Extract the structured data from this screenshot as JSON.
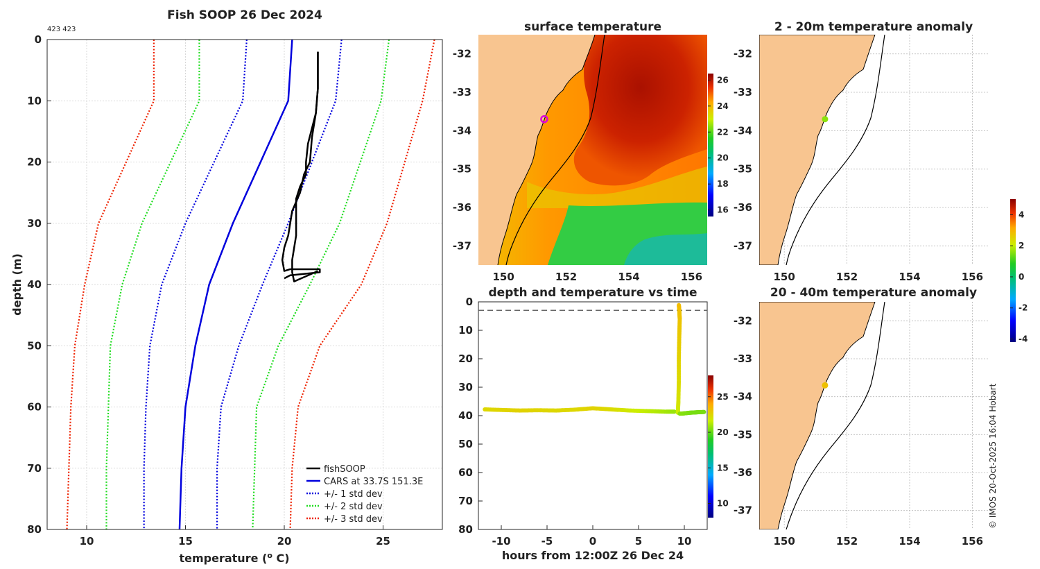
{
  "chart_data": [
    {
      "type": "line",
      "title": "Fish SOOP 26 Dec 2024",
      "subtitle": "423 423",
      "xlabel": "temperature (",
      "xlabel_sup": "o",
      "xlabel_tail": " C)",
      "ylabel": "depth (m)",
      "xlim": [
        8,
        28
      ],
      "ylim": [
        80,
        0
      ],
      "xticks": [
        10,
        15,
        20,
        25
      ],
      "yticks": [
        0,
        10,
        20,
        30,
        40,
        50,
        60,
        70,
        80
      ],
      "depths": [
        0,
        10,
        30,
        40,
        50,
        60,
        70,
        80
      ],
      "series": [
        {
          "name": "CARS at 33.7S 151.3E",
          "style": "solid",
          "color": "#0000dd",
          "x": [
            20.4,
            20.2,
            17.4,
            16.2,
            15.5,
            15.0,
            14.8,
            14.7
          ]
        },
        {
          "name": "+/- 1 std dev",
          "style": "dotted",
          "color": "#0000dd",
          "x": [
            18.1,
            17.9,
            15.0,
            13.8,
            13.2,
            13.0,
            12.9,
            12.9
          ]
        },
        {
          "name": "+/- 1 std dev",
          "style": "dotted",
          "color": "#0000dd",
          "legend": false,
          "x": [
            22.9,
            22.6,
            20.2,
            18.9,
            17.7,
            16.8,
            16.6,
            16.6
          ]
        },
        {
          "name": "+/- 2 std dev",
          "style": "dotted",
          "color": "#22dd22",
          "x": [
            15.7,
            15.7,
            12.8,
            11.8,
            11.2,
            11.1,
            11.0,
            11.0
          ]
        },
        {
          "name": "+/- 2 std dev",
          "style": "dotted",
          "color": "#22dd22",
          "legend": false,
          "x": [
            25.3,
            24.9,
            22.8,
            21.3,
            19.7,
            18.6,
            18.5,
            18.4
          ]
        },
        {
          "name": "+/- 3 std dev",
          "style": "dotted",
          "color": "#ee2200",
          "x": [
            13.4,
            13.4,
            10.6,
            9.9,
            9.4,
            9.2,
            9.1,
            9.0
          ]
        },
        {
          "name": "+/- 3 std dev",
          "style": "dotted",
          "color": "#ee2200",
          "legend": false,
          "x": [
            27.6,
            27.0,
            25.2,
            23.9,
            21.8,
            20.7,
            20.4,
            20.3
          ]
        }
      ],
      "fishsoop": {
        "name": "fishSOOP",
        "down": {
          "x": [
            21.7,
            21.7,
            21.6,
            21.2,
            21.1,
            21.1,
            20.8,
            20.6,
            20.6,
            20.6,
            20.6,
            20.5,
            20.4,
            20.4,
            20.5,
            21.7
          ],
          "y": [
            2,
            8,
            12,
            17,
            20,
            22,
            24,
            26,
            28,
            30,
            32,
            34,
            36,
            38,
            39.5,
            37.8
          ]
        },
        "up": {
          "x": [
            20.0,
            20.3,
            21.8,
            21.8,
            20.3,
            20.0,
            19.9,
            20.0,
            20.2,
            20.3,
            20.4,
            20.8,
            21.0,
            21.3,
            21.4,
            21.6,
            21.7,
            21.7
          ],
          "y": [
            39,
            38.5,
            38,
            37.5,
            37.5,
            37.8,
            36,
            34,
            32,
            30,
            28,
            25,
            22,
            20,
            16,
            12,
            8,
            2
          ]
        }
      },
      "legend": [
        "fishSOOP",
        "CARS at 33.7S 151.3E",
        "+/- 1 std dev",
        "+/- 2 std dev",
        "+/- 3 std dev"
      ],
      "legend_position": "bottom-right",
      "grid": true
    },
    {
      "type": "heatmap",
      "title": "surface temperature",
      "xlim": [
        149.2,
        156.5
      ],
      "ylim": [
        -37.5,
        -31.5
      ],
      "xticks": [
        150,
        152,
        154,
        156
      ],
      "yticks": [
        -32,
        -33,
        -34,
        -35,
        -36,
        -37
      ],
      "colorbar": {
        "range": [
          15.5,
          26.5
        ],
        "ticks": [
          16,
          18,
          20,
          22,
          24,
          26
        ]
      },
      "marker": {
        "lon": 151.3,
        "lat": -33.7,
        "shape": "ring",
        "color": "#dd00dd"
      }
    },
    {
      "type": "scatter",
      "title": "depth and temperature vs time",
      "xlabel": "hours from 12:00Z 26 Dec 24",
      "xlim": [
        -12.5,
        12.5
      ],
      "ylim": [
        80,
        0
      ],
      "xticks": [
        -10,
        -5,
        0,
        5,
        10
      ],
      "yticks": [
        0,
        10,
        20,
        30,
        40,
        50,
        60,
        70,
        80
      ],
      "reference_depth": 3,
      "track": [
        {
          "hours": [
            -11.8,
            -10,
            -8,
            -6,
            -4,
            -2,
            0,
            2,
            4,
            6,
            8,
            9.0
          ],
          "depth": [
            37.8,
            38,
            38.2,
            38.1,
            38.2,
            37.9,
            37.4,
            37.8,
            38.2,
            38.4,
            38.6,
            38.6
          ],
          "temp": [
            22.4,
            22.5,
            22.6,
            22.5,
            22.4,
            22.4,
            22.6,
            22.3,
            21.8,
            21.4,
            21.0,
            20.8
          ]
        },
        {
          "hours": [
            9.3,
            9.35,
            9.4,
            9.4,
            9.45,
            9.5,
            9.45,
            9.4
          ],
          "depth": [
            39,
            35,
            28,
            20,
            12,
            6,
            3,
            1
          ],
          "temp": [
            21.6,
            22,
            22.3,
            22.6,
            22.9,
            23.1,
            23.2,
            23.4
          ]
        },
        {
          "hours": [
            9.5,
            10,
            10.5,
            11,
            11.5,
            12.2
          ],
          "depth": [
            39.3,
            39.2,
            39.0,
            38.9,
            38.8,
            38.7
          ],
          "temp": [
            20.6,
            20.5,
            20.4,
            20.3,
            20.3,
            20.3
          ]
        }
      ],
      "colorbar": {
        "range": [
          8,
          28
        ],
        "ticks": [
          10,
          15,
          20,
          25
        ]
      }
    },
    {
      "type": "scatter",
      "title": "2 - 20m temperature anomaly",
      "xlim": [
        149.2,
        156.5
      ],
      "ylim": [
        -37.5,
        -31.5
      ],
      "xticks": [
        150,
        152,
        154,
        156
      ],
      "yticks": [
        -32,
        -33,
        -34,
        -35,
        -36,
        -37
      ],
      "points": [
        {
          "lon": 151.3,
          "lat": -33.7,
          "anomaly": 1.6
        }
      ]
    },
    {
      "type": "scatter",
      "title": "20 - 40m temperature anomaly",
      "xlim": [
        149.2,
        156.5
      ],
      "ylim": [
        -37.5,
        -31.5
      ],
      "xticks": [
        150,
        152,
        154,
        156
      ],
      "yticks": [
        -32,
        -33,
        -34,
        -35,
        -36,
        -37
      ],
      "points": [
        {
          "lon": 151.3,
          "lat": -33.7,
          "anomaly": 2.8
        }
      ],
      "colorbar": {
        "range": [
          -4.2,
          5
        ],
        "ticks": [
          -4,
          -2,
          0,
          2,
          4
        ]
      }
    }
  ],
  "footer": "© IMOS 20-Oct-2025 16:04 Hobart"
}
